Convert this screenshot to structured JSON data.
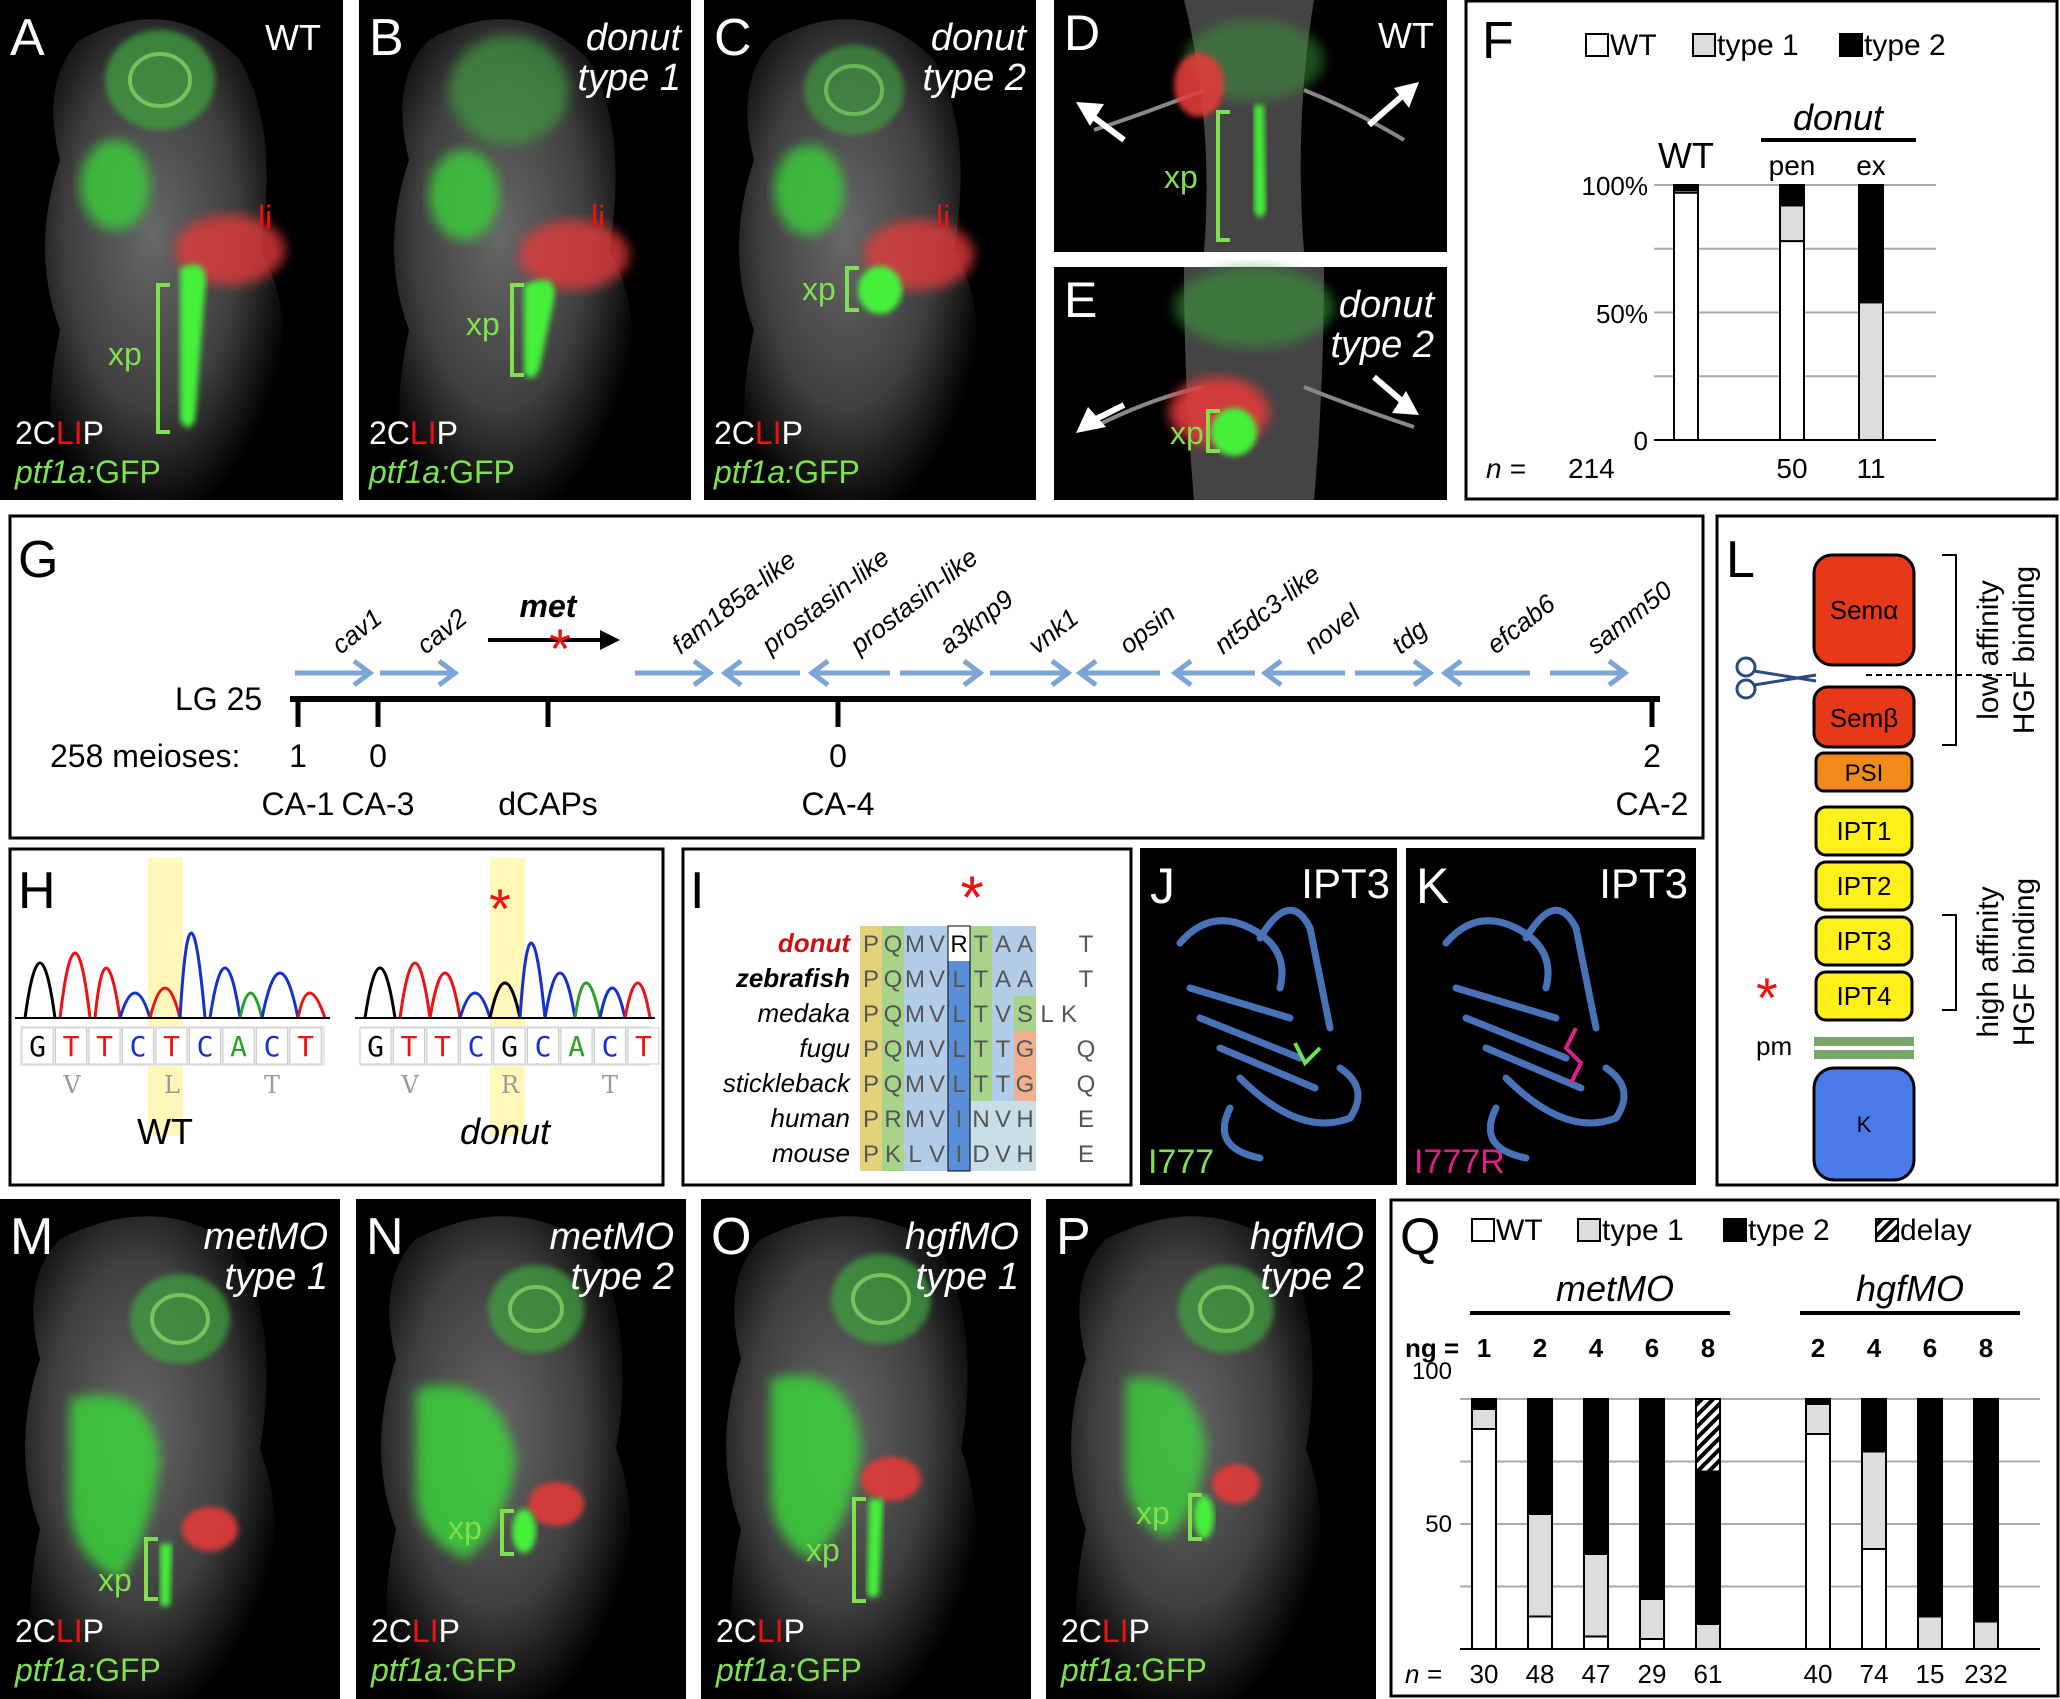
{
  "panels": {
    "A": {
      "letter": "A",
      "top": "WT",
      "bottom1_pre": "2C",
      "bottom1_red": "LI",
      "bottom1_post": "P",
      "bottom2_it": "ptf1a:",
      "bottom2": "GFP",
      "li": "li",
      "xp": "xp"
    },
    "B": {
      "letter": "B",
      "top1": "donut",
      "top2": "type 1",
      "bottom1_pre": "2C",
      "bottom1_red": "LI",
      "bottom1_post": "P",
      "bottom2_it": "ptf1a:",
      "bottom2": "GFP",
      "li": "li",
      "xp": "xp"
    },
    "C": {
      "letter": "C",
      "top1": "donut",
      "top2": "type 2",
      "bottom1_pre": "2C",
      "bottom1_red": "LI",
      "bottom1_post": "P",
      "bottom2_it": "ptf1a:",
      "bottom2": "GFP",
      "li": "li",
      "xp": "xp"
    },
    "D": {
      "letter": "D",
      "top": "WT",
      "xp": "xp"
    },
    "E": {
      "letter": "E",
      "top1": "donut",
      "top2": "type 2",
      "xp": "xp"
    },
    "M": {
      "letter": "M",
      "top1": "metMO",
      "top2": "type 1",
      "xp": "xp",
      "bottom1_pre": "2C",
      "bottom1_red": "LI",
      "bottom1_post": "P",
      "bottom2_it": "ptf1a:",
      "bottom2": "GFP"
    },
    "N": {
      "letter": "N",
      "top1": "metMO",
      "top2": "type 2",
      "xp": "xp",
      "bottom1_pre": "2C",
      "bottom1_red": "LI",
      "bottom1_post": "P",
      "bottom2_it": "ptf1a:",
      "bottom2": "GFP"
    },
    "O": {
      "letter": "O",
      "top1": "hgfMO",
      "top2": "type 1",
      "xp": "xp",
      "bottom1_pre": "2C",
      "bottom1_red": "LI",
      "bottom1_post": "P",
      "bottom2_it": "ptf1a:",
      "bottom2": "GFP"
    },
    "P": {
      "letter": "P",
      "top1": "hgfMO",
      "top2": "type 2",
      "xp": "xp",
      "bottom1_pre": "2C",
      "bottom1_red": "LI",
      "bottom1_post": "P",
      "bottom2_it": "ptf1a:",
      "bottom2": "GFP"
    }
  },
  "panelF": {
    "letter": "F",
    "legend": [
      "WT",
      "type 1",
      "type 2"
    ],
    "donut_label": "donut",
    "wt_label": "WT",
    "sub_labels": [
      "pen",
      "ex"
    ],
    "n_label": "n =",
    "n_values": [
      "214",
      "50",
      "11"
    ],
    "ticks": [
      "100%",
      "50%",
      "0"
    ]
  },
  "panelG": {
    "letter": "G",
    "lg": "LG 25",
    "meioses_label": "258 meioses:",
    "gene_met": "met",
    "genes": [
      "cav1",
      "cav2",
      "fam185a-like",
      "prostasin-like",
      "prostasin-like",
      "a3knp9",
      "vnk1",
      "opsin",
      "nt5dc3-like",
      "novel",
      "tdg",
      "efcab6",
      "samm50"
    ],
    "markers": [
      {
        "count": "1",
        "name": "CA-1"
      },
      {
        "count": "0",
        "name": "CA-3"
      },
      {
        "count": "",
        "name": "dCAPs"
      },
      {
        "count": "0",
        "name": "CA-4"
      },
      {
        "count": "2",
        "name": "CA-2"
      }
    ]
  },
  "panelH": {
    "letter": "H",
    "wt_seq": [
      "G",
      "T",
      "T",
      "C",
      "T",
      "C",
      "A",
      "C",
      "T"
    ],
    "wt_aa": [
      "V",
      "L",
      "T"
    ],
    "mut_seq": [
      "G",
      "T",
      "T",
      "C",
      "G",
      "C",
      "A",
      "C",
      "T"
    ],
    "mut_aa": [
      "V",
      "R",
      "T"
    ],
    "wt_label": "WT",
    "mut_label": "donut"
  },
  "panelI": {
    "letter": "I",
    "rows": [
      {
        "name": "donut",
        "seq": "PQMVRTAA",
        "tail": "T"
      },
      {
        "name": "zebrafish",
        "seq": "PQMVLTAA",
        "tail": "T"
      },
      {
        "name": "medaka",
        "seq": "PQMVLTVSLK",
        "tail": ""
      },
      {
        "name": "fugu",
        "seq": "PQMVLTTG",
        "tail": "Q"
      },
      {
        "name": "stickleback",
        "seq": "PQMVLTTG",
        "tail": "Q"
      },
      {
        "name": "human",
        "seq": "PRMVINVH",
        "tail": "E"
      },
      {
        "name": "mouse",
        "seq": "PKLVIDVH",
        "tail": "E"
      }
    ]
  },
  "panelJ": {
    "letter": "J",
    "title": "IPT3",
    "label": "I777"
  },
  "panelK": {
    "letter": "K",
    "title": "IPT3",
    "label": "I777R"
  },
  "panelL": {
    "letter": "L",
    "domains": [
      "Semα",
      "Semβ",
      "PSI",
      "IPT1",
      "IPT2",
      "IPT3",
      "IPT4",
      "K"
    ],
    "pm": "pm",
    "low1": "low affinity",
    "low2": "HGF binding",
    "high1": "high affinity",
    "high2": "HGF binding"
  },
  "panelQ": {
    "letter": "Q",
    "legend": [
      "WT",
      "type 1",
      "type 2",
      "delay"
    ],
    "group1": "metMO",
    "group2": "hgfMO",
    "ng_label": "ng =",
    "ng1": [
      "1",
      "2",
      "4",
      "6",
      "8"
    ],
    "ng2": [
      "2",
      "4",
      "6",
      "8"
    ],
    "n_label": "n =",
    "n1": [
      "30",
      "48",
      "47",
      "29",
      "61"
    ],
    "n2": [
      "40",
      "74",
      "15",
      "232"
    ],
    "ticks": [
      "100",
      "50"
    ]
  },
  "chart_data": [
    {
      "type": "bar",
      "categories": [
        "WT",
        "pen",
        "ex"
      ],
      "series": [
        {
          "name": "WT",
          "values": [
            97,
            78,
            0
          ]
        },
        {
          "name": "type 1",
          "values": [
            1,
            14,
            54
          ]
        },
        {
          "name": "type 2",
          "values": [
            2,
            8,
            46
          ]
        }
      ],
      "ylim": [
        0,
        100
      ],
      "stacked": true
    },
    {
      "type": "bar",
      "categories": [
        "1",
        "2",
        "4",
        "6",
        "8",
        "2",
        "4",
        "6",
        "8"
      ],
      "series": [
        {
          "name": "WT",
          "values": [
            88,
            13,
            5,
            4,
            0,
            86,
            40,
            0,
            0
          ]
        },
        {
          "name": "type 1",
          "values": [
            8,
            41,
            33,
            16,
            10,
            12,
            39,
            13,
            11
          ]
        },
        {
          "name": "type 2",
          "values": [
            4,
            46,
            62,
            80,
            61,
            2,
            21,
            87,
            89
          ]
        },
        {
          "name": "delay",
          "values": [
            0,
            0,
            0,
            0,
            29,
            0,
            0,
            0,
            0
          ]
        }
      ],
      "ylim": [
        0,
        100
      ],
      "stacked": true
    }
  ]
}
